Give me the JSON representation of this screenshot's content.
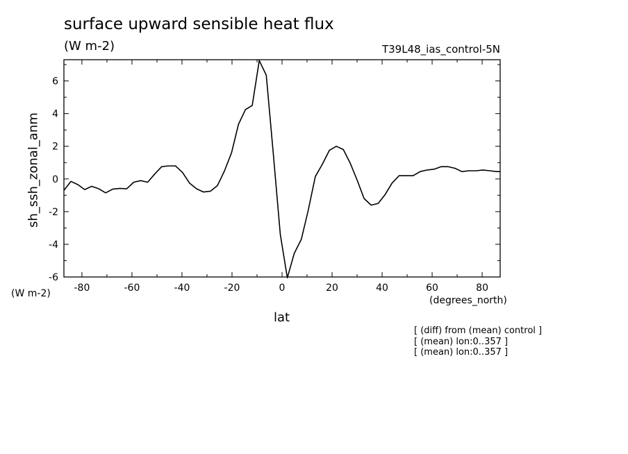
{
  "chart_data": {
    "type": "line",
    "title": "surface upward sensible heat flux",
    "subtitle": "(W m-2)",
    "run_label": "T39L48_ias_control-5N",
    "xlabel": "lat",
    "ylabel": "sh_ssh_zonal_anm",
    "y_units": "(W m-2)",
    "x_units": "(degrees_north)",
    "xlim": [
      -87.2,
      87.2
    ],
    "ylim": [
      -6,
      7.3
    ],
    "xticks": [
      -80,
      -60,
      -40,
      -20,
      0,
      20,
      40,
      60,
      80
    ],
    "yticks": [
      -6,
      -4,
      -2,
      0,
      2,
      4,
      6
    ],
    "grid": false,
    "notes": [
      "[ (diff) from (mean) control ]",
      "[ (mean) lon:0..357 ]",
      "[ (mean) lon:0..357 ]"
    ],
    "series": [
      {
        "x": [
          -87.2,
          -84.4,
          -81.6,
          -78.9,
          -76.1,
          -73.3,
          -70.5,
          -67.7,
          -64.9,
          -62.1,
          -59.3,
          -56.5,
          -53.7,
          -50.9,
          -48.1,
          -45.3,
          -42.6,
          -39.8,
          -37.0,
          -34.2,
          -31.4,
          -28.6,
          -25.8,
          -23.0,
          -20.2,
          -17.4,
          -14.6,
          -11.9,
          -9.1,
          -6.3,
          -3.5,
          -0.7,
          2.1,
          4.9,
          7.7,
          10.5,
          13.3,
          16.1,
          18.9,
          21.7,
          24.5,
          27.3,
          30.1,
          32.8,
          35.6,
          38.4,
          41.2,
          44.0,
          46.8,
          49.6,
          52.4,
          55.2,
          58.0,
          60.8,
          63.6,
          66.4,
          69.2,
          71.9,
          74.7,
          77.5,
          80.3,
          83.1,
          85.9,
          87.2
        ],
        "y": [
          -0.7,
          -0.15,
          -0.35,
          -0.65,
          -0.45,
          -0.6,
          -0.85,
          -0.62,
          -0.58,
          -0.6,
          -0.2,
          -0.1,
          -0.2,
          0.3,
          0.75,
          0.8,
          0.8,
          0.4,
          -0.25,
          -0.6,
          -0.8,
          -0.75,
          -0.4,
          0.5,
          1.6,
          3.35,
          4.25,
          4.5,
          7.25,
          6.35,
          1.55,
          -3.4,
          -6.05,
          -4.55,
          -3.7,
          -1.9,
          0.15,
          0.9,
          1.75,
          2.0,
          1.8,
          0.95,
          -0.1,
          -1.2,
          -1.6,
          -1.5,
          -0.95,
          -0.25,
          0.2,
          0.2,
          0.2,
          0.45,
          0.55,
          0.6,
          0.75,
          0.75,
          0.65,
          0.45,
          0.5,
          0.5,
          0.55,
          0.5,
          0.45,
          0.45
        ]
      }
    ]
  }
}
